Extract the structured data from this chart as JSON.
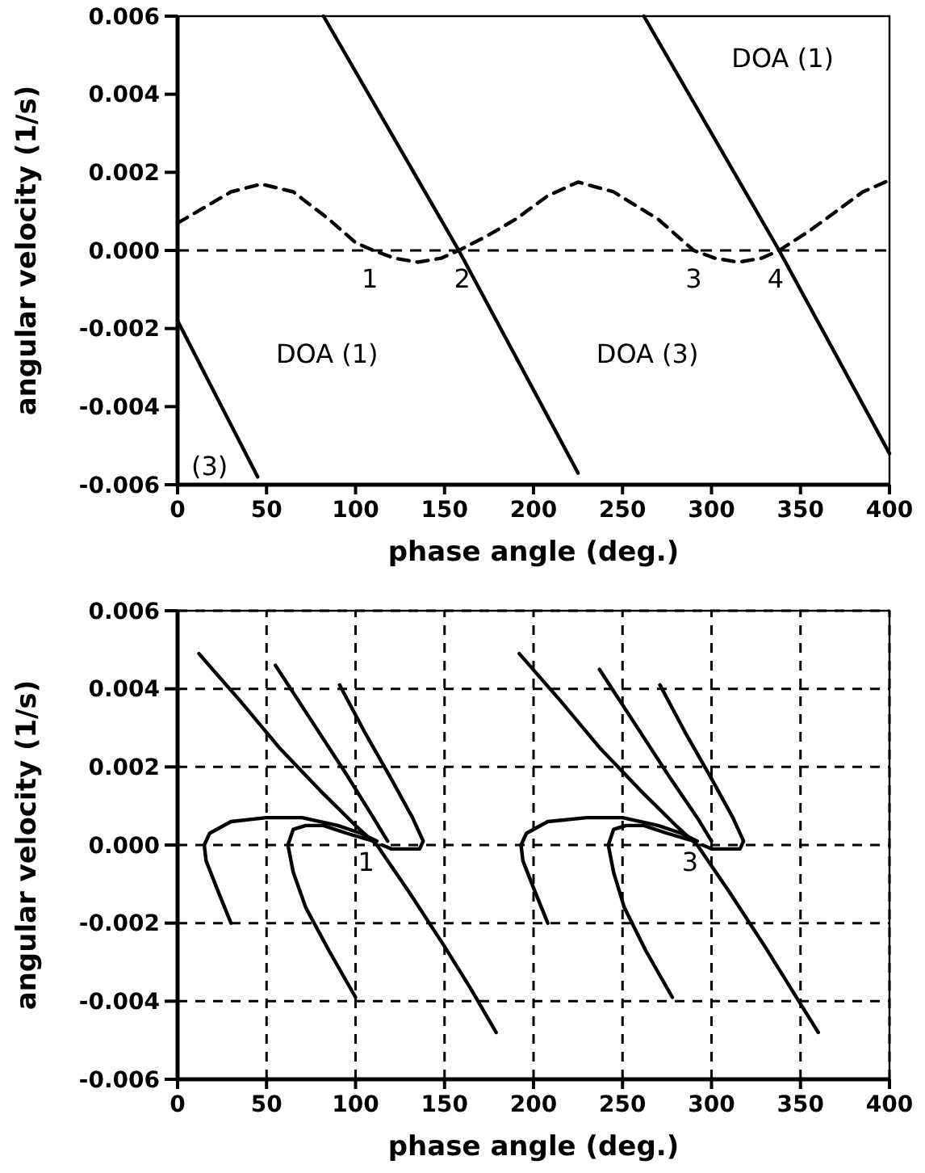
{
  "chart_data": [
    {
      "type": "line",
      "xlabel": "phase angle (deg.)",
      "ylabel": "angular velocity (1/s)",
      "xlim": [
        0,
        400
      ],
      "ylim": [
        -0.006,
        0.006
      ],
      "xticks": [
        0,
        50,
        100,
        150,
        200,
        250,
        300,
        350,
        400
      ],
      "yticks": [
        {
          "value": -0.006,
          "label": "-0.006"
        },
        {
          "value": -0.004,
          "label": "-0.004"
        },
        {
          "value": -0.002,
          "label": "-0.002"
        },
        {
          "value": 0,
          "label": "0.000"
        },
        {
          "value": 0.002,
          "label": "0.002"
        },
        {
          "value": 0.004,
          "label": "0.004"
        },
        {
          "value": 0.006,
          "label": "0.006"
        }
      ],
      "grid": false,
      "line_style": "solid",
      "ref_lines": [
        {
          "axis": "y",
          "value": 0,
          "line_style": "dashed",
          "color": "#000000"
        }
      ],
      "annotations": [
        "DOA (1)",
        "DOA (1)",
        "DOA (3)",
        "(3)",
        "1",
        "2",
        "3",
        "4"
      ],
      "series": [
        {
          "color": "#000000",
          "x": [
            0,
            45
          ],
          "values": [
            -0.0018,
            -0.0058
          ]
        },
        {
          "color": "#000000",
          "x": [
            82,
            158,
            225
          ],
          "values": [
            0.006,
            0,
            -0.0057
          ]
        },
        {
          "color": "#000000",
          "x": [
            262,
            338,
            400
          ],
          "values": [
            0.006,
            0,
            -0.0052
          ]
        },
        {
          "color": "#000000",
          "line_style": "dashed",
          "x": [
            0,
            15,
            30,
            47,
            65,
            85,
            100,
            110,
            122,
            135,
            148,
            158,
            175,
            190,
            208,
            225,
            245,
            270,
            290,
            302,
            315,
            328,
            338,
            355,
            370,
            385,
            400
          ],
          "values": [
            0.0007,
            0.0011,
            0.0015,
            0.0017,
            0.0015,
            0.0008,
            0.0002,
            0,
            -0.0002,
            -0.0003,
            -0.0002,
            0,
            0.0004,
            0.0008,
            0.0014,
            0.00175,
            0.0015,
            0.0008,
            0,
            -0.0002,
            -0.0003,
            -0.0002,
            0,
            0.0005,
            0.001,
            0.0015,
            0.0018
          ]
        }
      ]
    },
    {
      "type": "line",
      "xlabel": "phase angle (deg.)",
      "ylabel": "angular velocity (1/s)",
      "xlim": [
        0,
        400
      ],
      "ylim": [
        -0.006,
        0.006
      ],
      "xticks": [
        0,
        50,
        100,
        150,
        200,
        250,
        300,
        350,
        400
      ],
      "yticks": [
        {
          "value": -0.006,
          "label": "-0.006"
        },
        {
          "value": -0.004,
          "label": "-0.004"
        },
        {
          "value": -0.002,
          "label": "-0.002"
        },
        {
          "value": 0,
          "label": "0.000"
        },
        {
          "value": 0.002,
          "label": "0.002"
        },
        {
          "value": 0.004,
          "label": "0.004"
        },
        {
          "value": 0.006,
          "label": "0.006"
        }
      ],
      "grid": true,
      "line_style": "solid",
      "annotations": [
        "1",
        "3"
      ],
      "series": [
        {
          "color": "#000000",
          "x": [
            12,
            35,
            57,
            80,
            100,
            112,
            130,
            150,
            165,
            179
          ],
          "values": [
            0.0049,
            0.0037,
            0.0025,
            0.0014,
            0.0005,
            0,
            -0.0012,
            -0.0026,
            -0.0037,
            -0.0048
          ]
        },
        {
          "color": "#000000",
          "x": [
            55,
            75,
            95,
            110,
            118
          ],
          "values": [
            0.0046,
            0.0032,
            0.0018,
            0.0007,
            0.0001
          ]
        },
        {
          "color": "#000000",
          "x": [
            91,
            105,
            120,
            132,
            138,
            136,
            128,
            120,
            115
          ],
          "values": [
            0.0041,
            0.0029,
            0.0017,
            0.0007,
            0.0001,
            -0.0001,
            -0.0001,
            -0.0001,
            0
          ]
        },
        {
          "color": "#000000",
          "x": [
            30,
            22,
            16,
            15,
            18,
            30,
            50,
            70,
            90,
            103,
            112
          ],
          "values": [
            -0.002,
            -0.0011,
            -0.0004,
            0,
            0.0003,
            0.0006,
            0.0007,
            0.0007,
            0.0005,
            0.0003,
            0.0001
          ]
        },
        {
          "color": "#000000",
          "x": [
            100,
            85,
            72,
            65,
            62,
            65,
            72,
            82,
            95,
            110
          ],
          "values": [
            -0.0039,
            -0.0027,
            -0.0016,
            -0.0007,
            0,
            0.0004,
            0.0005,
            0.0005,
            0.0003,
            0.0001
          ]
        },
        {
          "color": "#000000",
          "x": [
            192,
            215,
            237,
            260,
            280,
            292,
            310,
            330,
            345,
            360
          ],
          "values": [
            0.0049,
            0.0037,
            0.0025,
            0.0014,
            0.0005,
            0,
            -0.0012,
            -0.0026,
            -0.0037,
            -0.0048
          ]
        },
        {
          "color": "#000000",
          "x": [
            237,
            257,
            277,
            292,
            300
          ],
          "values": [
            0.0045,
            0.0031,
            0.0017,
            0.0007,
            0.0001
          ]
        },
        {
          "color": "#000000",
          "x": [
            271,
            285,
            300,
            312,
            318,
            316,
            308,
            300,
            295
          ],
          "values": [
            0.0041,
            0.0029,
            0.0017,
            0.0007,
            0.0001,
            -0.0001,
            -0.0001,
            -0.0001,
            0
          ]
        },
        {
          "color": "#000000",
          "x": [
            208,
            200,
            194,
            193,
            196,
            208,
            230,
            250,
            270,
            283,
            292
          ],
          "values": [
            -0.002,
            -0.0011,
            -0.0004,
            0,
            0.0003,
            0.0006,
            0.0007,
            0.0007,
            0.0005,
            0.0003,
            0.0001
          ]
        },
        {
          "color": "#000000",
          "x": [
            278,
            263,
            251,
            245,
            242,
            245,
            252,
            262,
            275,
            290
          ],
          "values": [
            -0.0039,
            -0.0027,
            -0.0016,
            -0.0007,
            0,
            0.0004,
            0.0005,
            0.0005,
            0.0003,
            0.0001
          ]
        }
      ]
    }
  ]
}
